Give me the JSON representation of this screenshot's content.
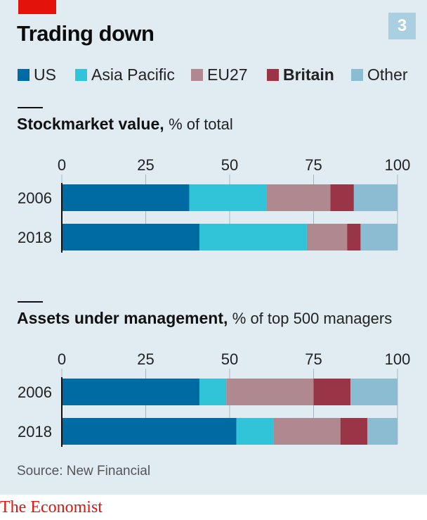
{
  "header": {
    "title": "Trading down",
    "chart_number": "3"
  },
  "legend": [
    {
      "label": "US",
      "color": "#006ba2",
      "bold": false
    },
    {
      "label": "Asia Pacific",
      "color": "#31c4d8",
      "bold": false
    },
    {
      "label": "EU27",
      "color": "#b0888f",
      "bold": false
    },
    {
      "label": "Britain",
      "color": "#9a3447",
      "bold": true
    },
    {
      "label": "Other",
      "color": "#8cbcd2",
      "bold": false
    }
  ],
  "footer": {
    "source": "Source: New Financial",
    "brand": "The Economist"
  },
  "chart_data": [
    {
      "type": "bar",
      "orientation": "horizontal",
      "stacked": true,
      "title": "Stockmarket value,",
      "subtitle": "% of total",
      "xlim": [
        0,
        100
      ],
      "xticks": [
        0,
        25,
        50,
        75,
        100
      ],
      "categories": [
        "2006",
        "2018"
      ],
      "series": [
        {
          "name": "US",
          "values": [
            38,
            41
          ]
        },
        {
          "name": "Asia Pacific",
          "values": [
            23,
            32
          ]
        },
        {
          "name": "EU27",
          "values": [
            19,
            12
          ]
        },
        {
          "name": "Britain",
          "values": [
            7,
            4
          ]
        },
        {
          "name": "Other",
          "values": [
            13,
            11
          ]
        }
      ]
    },
    {
      "type": "bar",
      "orientation": "horizontal",
      "stacked": true,
      "title": "Assets under management,",
      "subtitle": "% of top 500 managers",
      "xlim": [
        0,
        100
      ],
      "xticks": [
        0,
        25,
        50,
        75,
        100
      ],
      "categories": [
        "2006",
        "2018"
      ],
      "series": [
        {
          "name": "US",
          "values": [
            41,
            52
          ]
        },
        {
          "name": "Asia Pacific",
          "values": [
            8,
            11
          ]
        },
        {
          "name": "EU27",
          "values": [
            26,
            20
          ]
        },
        {
          "name": "Britain",
          "values": [
            11,
            8
          ]
        },
        {
          "name": "Other",
          "values": [
            14,
            9
          ]
        }
      ]
    }
  ]
}
